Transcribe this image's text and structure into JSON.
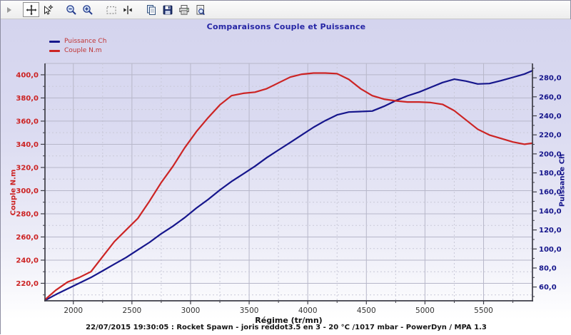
{
  "toolbar": {
    "buttons": [
      {
        "name": "pan",
        "active": true
      },
      {
        "name": "pointer"
      },
      {
        "name": "zoom-out"
      },
      {
        "name": "zoom-in"
      },
      {
        "name": "select-region"
      },
      {
        "name": "fit-axes"
      },
      {
        "name": "copy"
      },
      {
        "name": "save"
      },
      {
        "name": "print"
      },
      {
        "name": "print-preview"
      }
    ]
  },
  "caption": "22/07/2015 19:30:05 : Rocket Spawn - joris reddot3.5 en 3 - 20 °C /1017 mbar - PowerDyn / MPA 1.3",
  "colors": {
    "title": "#2525a5",
    "legend_text": "#c03434",
    "couple": "#cc2424",
    "puissance": "#16168c",
    "grid_major": "#b7b7c9",
    "grid_minor": "#c9c9d8",
    "axis_line": "#3d3d47",
    "x_labels": "#333333"
  },
  "chart_data": {
    "type": "line",
    "title": "Comparaisons Couple et Puissance",
    "xlabel": "Régime (tr/mn)",
    "grid": true,
    "legend_position": "top-left",
    "x_axis": {
      "min": 1758,
      "max": 5917,
      "major_ticks": [
        2000,
        2500,
        3000,
        3500,
        4000,
        4500,
        5000,
        5500
      ],
      "minor_ticks": [
        2250,
        2750,
        3250,
        3750,
        4250,
        4750,
        5250,
        5750
      ]
    },
    "left_axis": {
      "label": "Couple N.m",
      "color": "#cc2222",
      "min": 204.9,
      "max": 409.8,
      "major_ticks": [
        220,
        240,
        260,
        280,
        300,
        320,
        340,
        360,
        380,
        400
      ],
      "minor_ticks": [
        210,
        230,
        250,
        270,
        290,
        310,
        330,
        350,
        370,
        390
      ]
    },
    "right_axis": {
      "label": "Puissance Ch",
      "color": "#16168c",
      "min": 45.5,
      "max": 295.1,
      "major_ticks": [
        60,
        80,
        100,
        120,
        140,
        160,
        180,
        200,
        220,
        240,
        260,
        280
      ],
      "minor_ticks": [
        50,
        70,
        90,
        110,
        130,
        150,
        170,
        190,
        210,
        230,
        250,
        270,
        290
      ]
    },
    "x": [
      1760,
      1850,
      1950,
      2050,
      2150,
      2250,
      2350,
      2450,
      2550,
      2650,
      2750,
      2850,
      2950,
      3050,
      3150,
      3250,
      3350,
      3450,
      3550,
      3650,
      3750,
      3850,
      3950,
      4050,
      4150,
      4250,
      4350,
      4450,
      4550,
      4650,
      4750,
      4850,
      4950,
      5050,
      5150,
      5250,
      5350,
      5450,
      5550,
      5650,
      5750,
      5850,
      5917
    ],
    "series": [
      {
        "name": "Puissance Ch",
        "axis": "right",
        "color": "#16168c",
        "values": [
          46,
          52,
          58,
          64,
          70,
          77,
          84,
          91,
          99,
          107,
          116,
          124,
          133,
          143,
          152,
          162,
          171,
          179,
          187,
          196,
          204,
          212,
          220,
          228,
          235,
          241,
          244,
          244.5,
          245,
          250,
          256,
          261,
          265,
          270,
          275,
          278.5,
          276.5,
          273.5,
          274,
          277,
          280.5,
          284,
          287.5
        ]
      },
      {
        "name": "Couple N.m",
        "axis": "left",
        "color": "#cc2424",
        "values": [
          206,
          214,
          221,
          225,
          230,
          243,
          256,
          266,
          276,
          291,
          307,
          321,
          337,
          351,
          363,
          374,
          382,
          384,
          385,
          388,
          393,
          398,
          400.5,
          401.5,
          401.5,
          401,
          396,
          388,
          382,
          379,
          377.5,
          376.5,
          376.5,
          376,
          374.5,
          369,
          361,
          353,
          348,
          345,
          342,
          340,
          341
        ]
      }
    ]
  }
}
